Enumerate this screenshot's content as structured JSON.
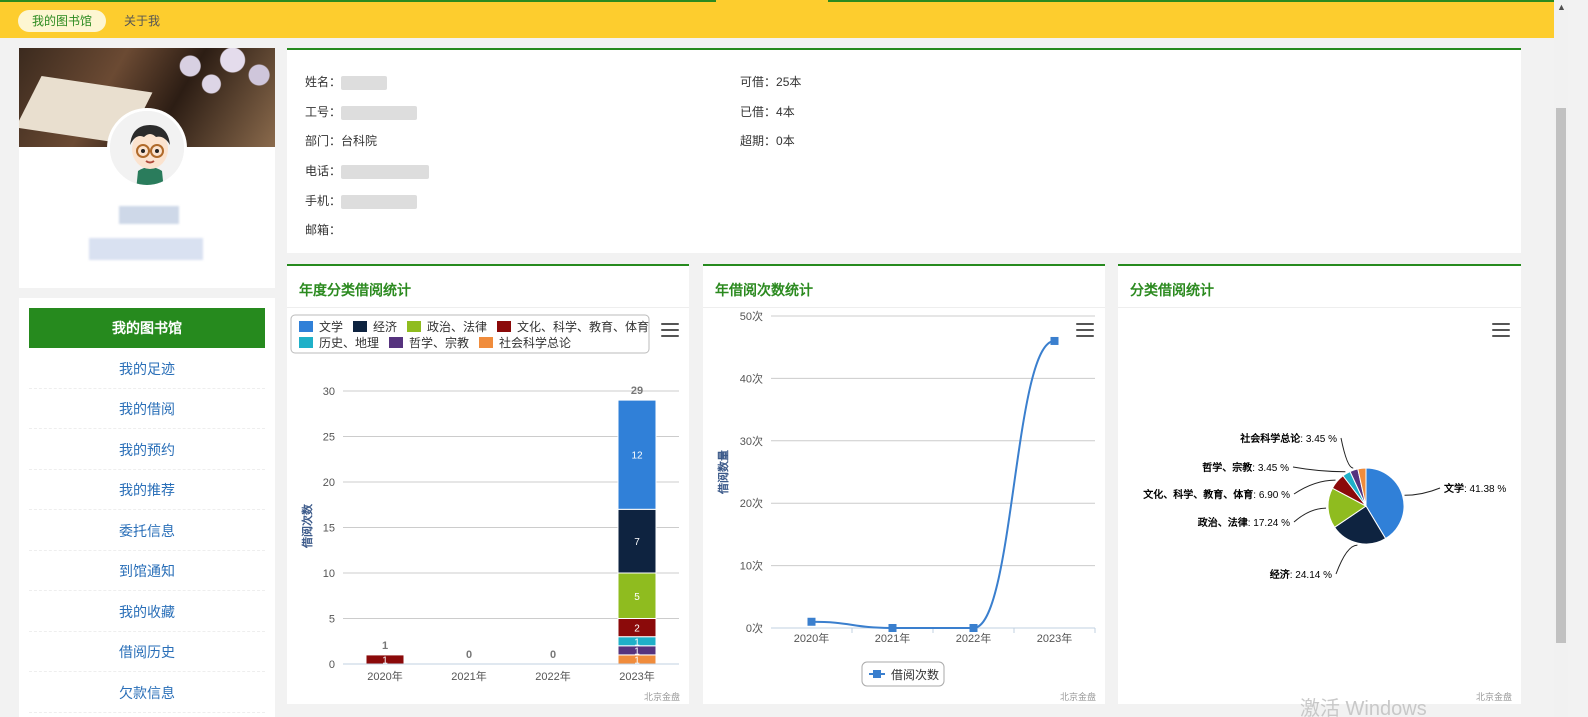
{
  "nav": {
    "tabs": [
      {
        "label": "我的图书馆"
      },
      {
        "label": "关于我"
      }
    ]
  },
  "user": {
    "name_label": "姓名：",
    "id_label": "工号：",
    "dept_label": "部门：",
    "dept_value": "台科院",
    "phone_label": "电话：",
    "mobile_label": "手机：",
    "email_label": "邮箱：",
    "can_borrow_label": "可借：",
    "can_borrow_value": "25本",
    "borrowed_label": "已借：",
    "borrowed_value": "4本",
    "overdue_label": "超期：",
    "overdue_value": "0本"
  },
  "sidebar": {
    "items": [
      {
        "label": "我的图书馆"
      },
      {
        "label": "我的足迹"
      },
      {
        "label": "我的借阅"
      },
      {
        "label": "我的预约"
      },
      {
        "label": "我的推荐"
      },
      {
        "label": "委托信息"
      },
      {
        "label": "到馆通知"
      },
      {
        "label": "我的收藏"
      },
      {
        "label": "借阅历史"
      },
      {
        "label": "欠款信息"
      }
    ]
  },
  "credits": "北京金盘",
  "watermark": "激活 Windows",
  "colors": {
    "accent_green": "#268a1e",
    "top_yellow": "#fdcd2e",
    "link_blue": "#2a6fb8"
  },
  "chart_data": [
    {
      "type": "bar",
      "title": "年度分类借阅统计",
      "ylabel": "借阅次数",
      "categories": [
        "2020年",
        "2021年",
        "2022年",
        "2023年"
      ],
      "ylim": [
        0,
        30
      ],
      "yticks": [
        0,
        5,
        10,
        15,
        20,
        25,
        30
      ],
      "stacked": true,
      "totals": [
        1,
        0,
        0,
        29
      ],
      "legend_position": "top-left",
      "series": [
        {
          "name": "文学",
          "color": "#3080d8",
          "values": [
            0,
            0,
            0,
            12
          ]
        },
        {
          "name": "经济",
          "color": "#0e2340",
          "values": [
            0,
            0,
            0,
            7
          ]
        },
        {
          "name": "政治、法律",
          "color": "#8fbc1f",
          "values": [
            0,
            0,
            0,
            5
          ]
        },
        {
          "name": "文化、科学、教育、体育",
          "color": "#8b0a0a",
          "values": [
            1,
            0,
            0,
            2
          ]
        },
        {
          "name": "历史、地理",
          "color": "#1fb0c8",
          "values": [
            0,
            0,
            0,
            1
          ]
        },
        {
          "name": "哲学、宗教",
          "color": "#56337e",
          "values": [
            0,
            0,
            0,
            1
          ]
        },
        {
          "name": "社会科学总论",
          "color": "#f08c3c",
          "values": [
            0,
            0,
            0,
            1
          ]
        }
      ]
    },
    {
      "type": "line",
      "title": "年借阅次数统计",
      "ylabel": "借阅数量",
      "categories": [
        "2020年",
        "2021年",
        "2022年",
        "2023年"
      ],
      "ylim": [
        0,
        50
      ],
      "yticks": [
        "0次",
        "10次",
        "20次",
        "30次",
        "40次",
        "50次"
      ],
      "legend_position": "bottom",
      "series": [
        {
          "name": "借阅次数",
          "color": "#3a7fce",
          "values": [
            1,
            0,
            0,
            46
          ]
        }
      ]
    },
    {
      "type": "pie",
      "title": "分类借阅统计",
      "slices": [
        {
          "name": "文学",
          "value": 41.38,
          "label": "41.38 %",
          "color": "#3080d8"
        },
        {
          "name": "经济",
          "value": 24.14,
          "label": "24.14 %",
          "color": "#0e2340"
        },
        {
          "name": "政治、法律",
          "value": 17.24,
          "label": "17.24 %",
          "color": "#8fbc1f"
        },
        {
          "name": "文化、科学、教育、体育",
          "value": 6.9,
          "label": "6.90 %",
          "color": "#8b0a0a"
        },
        {
          "name": "哲学、宗教",
          "value": 3.45,
          "label": "3.45 %",
          "color": "#1fb0c8"
        },
        {
          "name": "社会科学总论",
          "value": 3.45,
          "label": "3.45 %",
          "color": "#56337e"
        },
        {
          "name": "社会科学总论",
          "value": 3.45,
          "label": "",
          "color": "#f08c3c"
        }
      ]
    }
  ]
}
